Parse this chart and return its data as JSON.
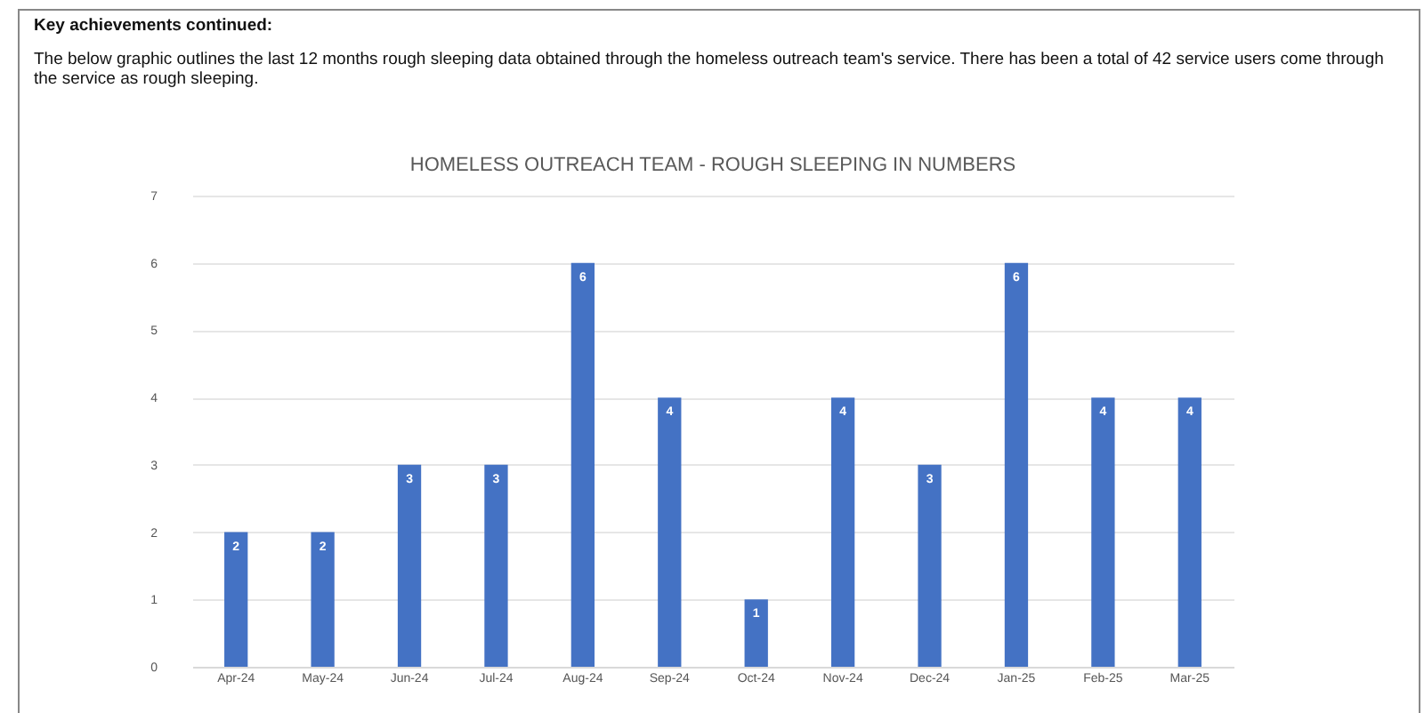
{
  "chart_data": {
    "type": "bar",
    "title": "HOMELESS OUTREACH TEAM - ROUGH SLEEPING IN NUMBERS",
    "annotations": [
      "Key achievements continued:",
      "The below graphic outlines the last 12 months rough sleeping data obtained through the homeless outreach team's service. There has been a total of 42 service users come through the service as rough sleeping."
    ],
    "categories": [
      "Apr-24",
      "May-24",
      "Jun-24",
      "Jul-24",
      "Aug-24",
      "Sep-24",
      "Oct-24",
      "Nov-24",
      "Dec-24",
      "Jan-25",
      "Feb-25",
      "Mar-25"
    ],
    "values": [
      2,
      2,
      3,
      3,
      6,
      4,
      1,
      4,
      3,
      6,
      4,
      4
    ],
    "color": "#4472c4",
    "ylim": [
      0,
      7
    ],
    "yticks": [
      0,
      1,
      2,
      3,
      4,
      5,
      6,
      7
    ],
    "grid": "y",
    "data_labels": true
  }
}
